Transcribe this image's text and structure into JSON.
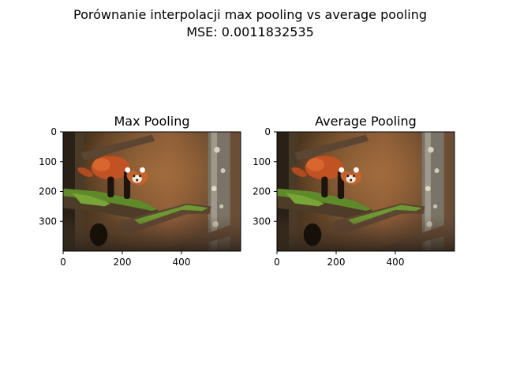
{
  "figure": {
    "title_line1": "Porównanie interpolacji max pooling vs average pooling",
    "title_line2": "MSE: 0.0011832535"
  },
  "chart_data": [
    {
      "type": "image",
      "title": "Max Pooling",
      "image_subject": "red panda on mossy branch",
      "xlim": [
        0,
        600
      ],
      "ylim": [
        400,
        0
      ],
      "x_ticks": [
        0,
        200,
        400
      ],
      "y_ticks": [
        0,
        100,
        200,
        300
      ]
    },
    {
      "type": "image",
      "title": "Average Pooling",
      "image_subject": "red panda on mossy branch",
      "xlim": [
        0,
        600
      ],
      "ylim": [
        400,
        0
      ],
      "x_ticks": [
        0,
        200,
        400
      ],
      "y_ticks": [
        0,
        100,
        200,
        300
      ]
    }
  ]
}
